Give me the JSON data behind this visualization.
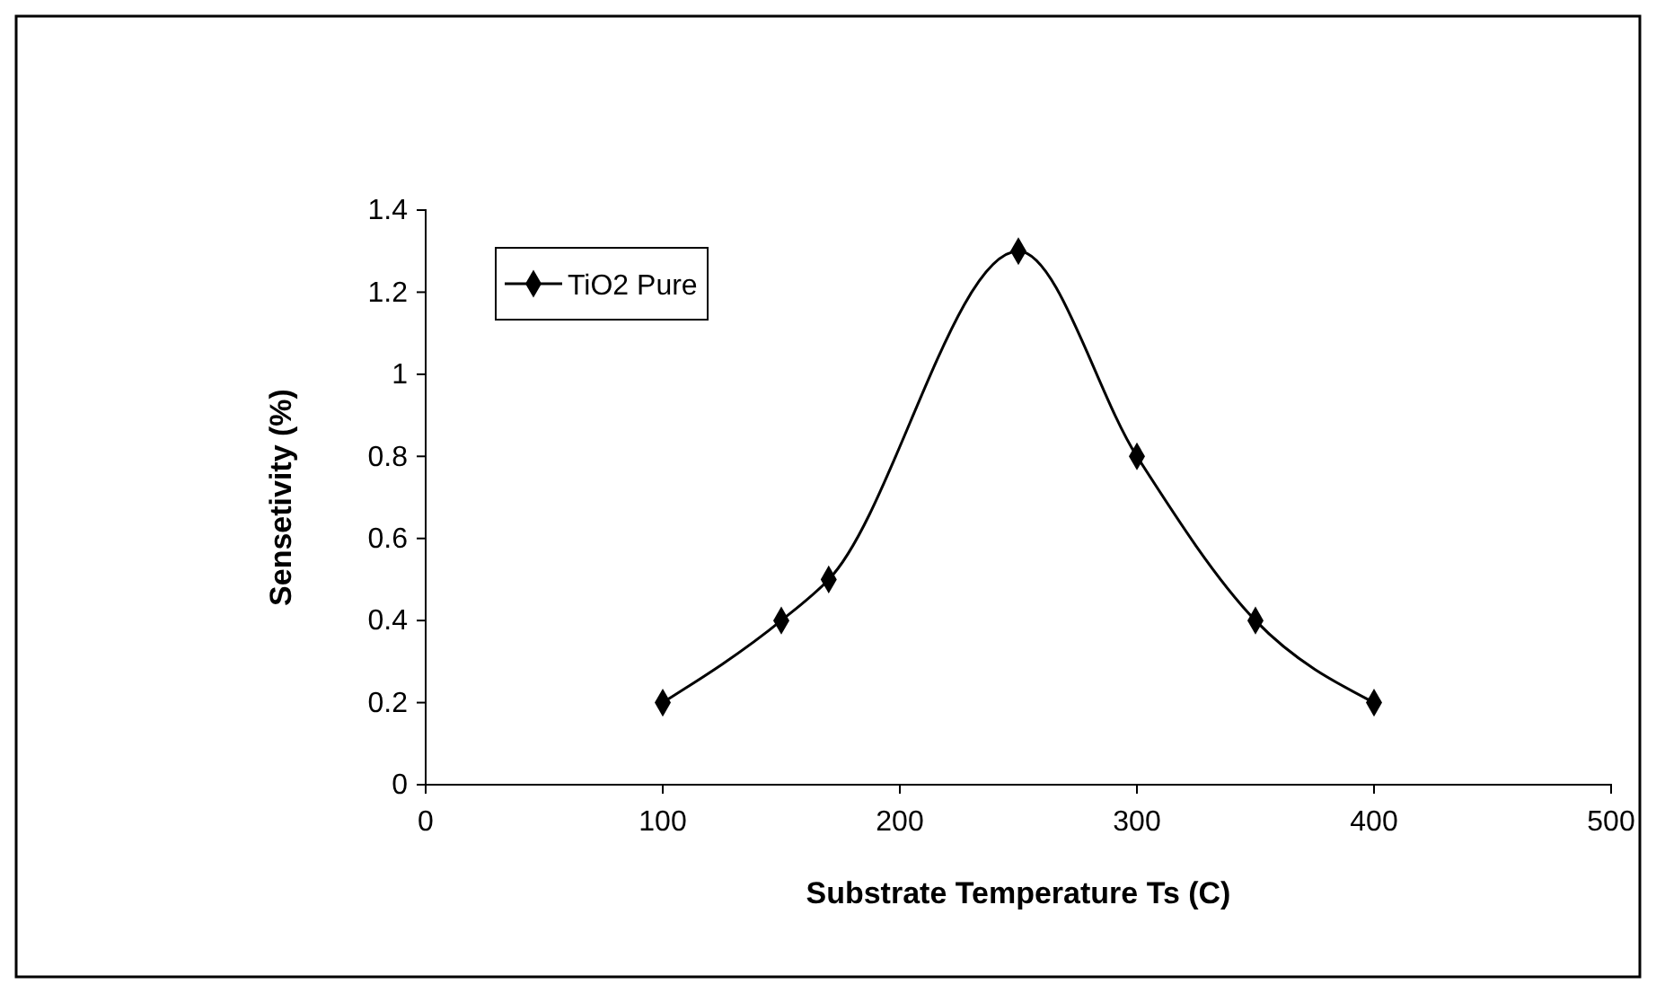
{
  "chart_data": {
    "type": "line",
    "xlabel": "Substrate Temperature Ts (C)",
    "ylabel": "Sensetivity (%)",
    "x": [
      100,
      150,
      170,
      250,
      300,
      350,
      400
    ],
    "series": [
      {
        "name": "TiO2 Pure",
        "color": "#000000",
        "values": [
          0.2,
          0.4,
          0.5,
          1.3,
          0.8,
          0.4,
          0.2
        ]
      }
    ],
    "xlim": [
      0,
      500
    ],
    "xticks": [
      0,
      100,
      200,
      300,
      400,
      500
    ],
    "ylim": [
      0,
      1.4
    ],
    "yticks": [
      0,
      {
        "value": 0.2,
        "label": "0.2"
      },
      {
        "value": 0.4,
        "label": "0.4"
      },
      {
        "value": 0.6,
        "label": "0.6"
      },
      {
        "value": 0.8,
        "label": "0.8"
      },
      1,
      {
        "value": 1.2,
        "label": "1.2"
      },
      {
        "value": 1.4,
        "label": "1.4"
      }
    ],
    "grid": false,
    "legend": "top left",
    "marker": "diamond",
    "line_style": "solid"
  }
}
